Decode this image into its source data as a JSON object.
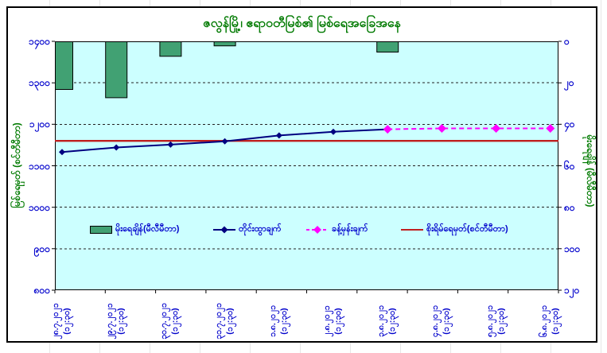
{
  "colors": {
    "plot_background": "#CCFFFF",
    "tick_label_text": "#0000CC",
    "title_text": "#007A00",
    "bar_fill": "#41A173",
    "measured_line": "#000080",
    "forecast_line": "#FF00FF",
    "danger_line": "#BF1F1F"
  },
  "time_label": "(၁၂:၃၀)",
  "chart_data": {
    "type": "combo: bar + line + dashed-line + constant-line",
    "title": "ဇလွန်မြို့၊ ဧရာဝတီမြစ်၏ မြစ်ရေအခြေအနေ",
    "plot_bg": "#CCFFFF",
    "grid": "horizontal-dashed",
    "legend_position": "inside-bottom",
    "categories_date": [
      "၂၈.၇.၂၀၂၁",
      "၂၉.၇.၂၀၂၁",
      "၃၀.၇.၂၀၂၁",
      "၃၁.၇.၂၀၂၁",
      "၁.၈.၂၀၂၁",
      "၂.၈.၂၀၂၁",
      "၃.၈.၂၀၂၁",
      "၄.၈.၂၀၂၁",
      "၅.၈.၂၀၂၁",
      "၆.၈.၂၀၂၁"
    ],
    "categories_time": "(၁၂:၃၀)",
    "left_axis": {
      "label": "မြစ်ရေမှတ် (စင်တီမီတာ)",
      "min": 800,
      "max": 1400,
      "tick_step": 100,
      "tick_values": [
        1400,
        1300,
        1200,
        1100,
        1000,
        900,
        800
      ],
      "tick_labels": [
        "၁၄၀၀",
        "၁၃၀၀",
        "၁၂၀၀",
        "၁၁၀၀",
        "၁၀၀၀",
        "၉၀၀",
        "၈၀၀"
      ]
    },
    "right_axis": {
      "label": "မိုးရေချိန် (မီလီမီတာ)",
      "min": 0,
      "max": 120,
      "tick_step": 20,
      "inverted": true,
      "tick_values": [
        0,
        20,
        40,
        60,
        80,
        100,
        120
      ],
      "tick_labels": [
        "၀",
        "၂၀",
        "၄၀",
        "၆၀",
        "၈၀",
        "၁၀၀",
        "၁၂၀"
      ]
    },
    "series": [
      {
        "name": "မိုးရေချိန်(မီလီမီတာ)",
        "type": "bar",
        "axis": "right",
        "unit": "mm",
        "color": "#41A173",
        "values": [
          23,
          27,
          7,
          2,
          0,
          0,
          5,
          0,
          0,
          0
        ]
      },
      {
        "name": "တိုင်းထွာချက်",
        "type": "line",
        "axis": "left",
        "unit": "cm",
        "color": "#000080",
        "values": [
          1133,
          1144,
          1151,
          1159,
          1173,
          1182,
          1188,
          null,
          null,
          null
        ]
      },
      {
        "name": "ခန့်မှန်းချက်",
        "type": "dashed-line",
        "axis": "left",
        "unit": "cm",
        "color": "#FF00FF",
        "values": [
          null,
          null,
          null,
          null,
          null,
          null,
          1188,
          1190,
          1190,
          1190
        ]
      },
      {
        "name": "စိုးရိမ်ရေမှတ်(စင်တီမီတာ)",
        "type": "constant-line",
        "axis": "left",
        "unit": "cm",
        "color": "#BF1F1F",
        "value": 1160
      }
    ]
  }
}
